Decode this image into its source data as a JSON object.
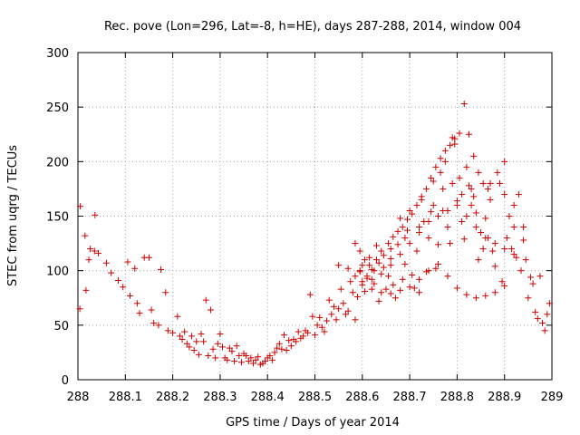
{
  "chart_data": {
    "type": "scatter",
    "title": "Rec. pove (Lon=296, Lat=-8, h=HE), days 287-288, 2014, window 004",
    "xlabel": "GPS time / Days of year 2014",
    "ylabel": "STEC from uqrg / TECUs",
    "xlim": [
      288,
      289
    ],
    "ylim": [
      0,
      300
    ],
    "xticks": [
      288,
      288.1,
      288.2,
      288.3,
      288.4,
      288.5,
      288.6,
      288.7,
      288.8,
      288.9,
      289
    ],
    "xtick_labels": [
      "288",
      "288.1",
      "288.2",
      "288.3",
      "288.4",
      "288.5",
      "288.6",
      "288.7",
      "288.8",
      "288.9",
      "289"
    ],
    "yticks": [
      0,
      50,
      100,
      150,
      200,
      250,
      300
    ],
    "ytick_labels": [
      "0",
      "50",
      "100",
      "150",
      "200",
      "250",
      "300"
    ],
    "grid": true,
    "marker": "+",
    "colors": {
      "series": "#cc0000",
      "grid": "#a0a0a0",
      "axis": "#000000"
    },
    "series": [
      {
        "name": "",
        "points": [
          [
            288.005,
            159
          ],
          [
            288.004,
            65
          ],
          [
            288.015,
            132
          ],
          [
            288.017,
            82
          ],
          [
            288.023,
            110
          ],
          [
            288.026,
            120
          ],
          [
            288.036,
            151
          ],
          [
            288.043,
            116
          ],
          [
            288.035,
            118
          ],
          [
            288.06,
            107
          ],
          [
            288.07,
            98
          ],
          [
            288.085,
            91
          ],
          [
            288.095,
            85
          ],
          [
            288.105,
            108
          ],
          [
            288.11,
            77
          ],
          [
            288.12,
            102
          ],
          [
            288.125,
            70
          ],
          [
            288.13,
            61
          ],
          [
            288.14,
            112
          ],
          [
            288.15,
            112
          ],
          [
            288.155,
            64
          ],
          [
            288.16,
            52
          ],
          [
            288.17,
            50
          ],
          [
            288.175,
            101
          ],
          [
            288.185,
            80
          ],
          [
            288.19,
            45
          ],
          [
            288.2,
            43
          ],
          [
            288.21,
            58
          ],
          [
            288.215,
            40
          ],
          [
            288.22,
            37
          ],
          [
            288.225,
            44
          ],
          [
            288.23,
            33
          ],
          [
            288.235,
            30
          ],
          [
            288.24,
            40
          ],
          [
            288.245,
            27
          ],
          [
            288.25,
            35
          ],
          [
            288.255,
            23
          ],
          [
            288.26,
            42
          ],
          [
            288.265,
            35
          ],
          [
            288.27,
            73
          ],
          [
            288.275,
            22
          ],
          [
            288.28,
            64
          ],
          [
            288.285,
            28
          ],
          [
            288.29,
            20
          ],
          [
            288.295,
            33
          ],
          [
            288.3,
            42
          ],
          [
            288.305,
            30
          ],
          [
            288.31,
            20
          ],
          [
            288.315,
            18
          ],
          [
            288.32,
            29
          ],
          [
            288.325,
            26
          ],
          [
            288.33,
            17
          ],
          [
            288.335,
            31
          ],
          [
            288.34,
            22
          ],
          [
            288.345,
            16
          ],
          [
            288.35,
            24
          ],
          [
            288.355,
            22
          ],
          [
            288.36,
            17
          ],
          [
            288.365,
            20
          ],
          [
            288.37,
            15
          ],
          [
            288.375,
            18
          ],
          [
            288.38,
            21
          ],
          [
            288.385,
            14
          ],
          [
            288.39,
            15
          ],
          [
            288.395,
            17
          ],
          [
            288.4,
            20
          ],
          [
            288.405,
            22
          ],
          [
            288.41,
            18
          ],
          [
            288.415,
            25
          ],
          [
            288.42,
            29
          ],
          [
            288.425,
            33
          ],
          [
            288.43,
            28
          ],
          [
            288.435,
            41
          ],
          [
            288.44,
            27
          ],
          [
            288.445,
            36
          ],
          [
            288.45,
            31
          ],
          [
            288.455,
            37
          ],
          [
            288.46,
            35
          ],
          [
            288.465,
            44
          ],
          [
            288.47,
            38
          ],
          [
            288.475,
            40
          ],
          [
            288.48,
            45
          ],
          [
            288.485,
            43
          ],
          [
            288.49,
            78
          ],
          [
            288.495,
            58
          ],
          [
            288.5,
            41
          ],
          [
            288.505,
            50
          ],
          [
            288.51,
            57
          ],
          [
            288.515,
            48
          ],
          [
            288.52,
            44
          ],
          [
            288.525,
            54
          ],
          [
            288.53,
            73
          ],
          [
            288.535,
            60
          ],
          [
            288.54,
            67
          ],
          [
            288.545,
            55
          ],
          [
            288.55,
            65
          ],
          [
            288.555,
            83
          ],
          [
            288.56,
            70
          ],
          [
            288.565,
            60
          ],
          [
            288.57,
            63
          ],
          [
            288.575,
            90
          ],
          [
            288.58,
            80
          ],
          [
            288.585,
            55
          ],
          [
            288.59,
            76
          ],
          [
            288.595,
            100
          ],
          [
            288.6,
            87
          ],
          [
            288.605,
            81
          ],
          [
            288.61,
            93
          ],
          [
            288.615,
            112
          ],
          [
            288.62,
            101
          ],
          [
            288.625,
            88
          ],
          [
            288.63,
            123
          ],
          [
            288.635,
            72
          ],
          [
            288.64,
            118
          ],
          [
            288.645,
            103
          ],
          [
            288.65,
            83
          ],
          [
            288.655,
            95
          ],
          [
            288.66,
            111
          ],
          [
            288.665,
            87
          ],
          [
            288.67,
            75
          ],
          [
            288.675,
            124
          ],
          [
            288.68,
            148
          ],
          [
            288.685,
            92
          ],
          [
            288.69,
            106
          ],
          [
            288.695,
            137
          ],
          [
            288.7,
            155
          ],
          [
            288.705,
            96
          ],
          [
            288.71,
            84
          ],
          [
            288.715,
            118
          ],
          [
            288.72,
            80
          ],
          [
            288.725,
            165
          ],
          [
            288.73,
            145
          ],
          [
            288.735,
            99
          ],
          [
            288.74,
            130
          ],
          [
            288.745,
            154
          ],
          [
            288.75,
            182
          ],
          [
            288.755,
            102
          ],
          [
            288.76,
            124
          ],
          [
            288.765,
            190
          ],
          [
            288.77,
            155
          ],
          [
            288.775,
            200
          ],
          [
            288.78,
            140
          ],
          [
            288.785,
            125
          ],
          [
            288.79,
            222
          ],
          [
            288.795,
            216
          ],
          [
            288.8,
            164
          ],
          [
            288.805,
            185
          ],
          [
            288.81,
            145
          ],
          [
            288.815,
            129
          ],
          [
            288.82,
            195
          ],
          [
            288.825,
            178
          ],
          [
            288.83,
            160
          ],
          [
            288.835,
            168
          ],
          [
            288.84,
            153
          ],
          [
            288.845,
            110
          ],
          [
            288.85,
            135
          ],
          [
            288.855,
            120
          ],
          [
            288.86,
            148
          ],
          [
            288.865,
            130
          ],
          [
            288.87,
            165
          ],
          [
            288.875,
            118
          ],
          [
            288.88,
            104
          ],
          [
            288.885,
            190
          ],
          [
            288.89,
            180
          ],
          [
            288.895,
            90
          ],
          [
            288.9,
            200
          ],
          [
            288.905,
            130
          ],
          [
            288.91,
            150
          ],
          [
            288.915,
            120
          ],
          [
            288.92,
            140
          ],
          [
            288.925,
            112
          ],
          [
            288.93,
            170
          ],
          [
            288.935,
            100
          ],
          [
            288.94,
            128
          ],
          [
            288.945,
            110
          ],
          [
            288.95,
            75
          ],
          [
            288.955,
            94
          ],
          [
            288.96,
            88
          ],
          [
            288.965,
            62
          ],
          [
            288.97,
            56
          ],
          [
            288.975,
            95
          ],
          [
            288.98,
            52
          ],
          [
            288.985,
            45
          ],
          [
            288.99,
            60
          ],
          [
            288.995,
            70
          ],
          [
            288.585,
            125
          ],
          [
            288.595,
            118
          ],
          [
            288.605,
            110
          ],
          [
            288.615,
            105
          ],
          [
            288.625,
            100
          ],
          [
            288.635,
            107
          ],
          [
            288.645,
            114
          ],
          [
            288.655,
            125
          ],
          [
            288.665,
            131
          ],
          [
            288.675,
            136
          ],
          [
            288.685,
            140
          ],
          [
            288.695,
            147
          ],
          [
            288.705,
            152
          ],
          [
            288.715,
            160
          ],
          [
            288.725,
            168
          ],
          [
            288.735,
            175
          ],
          [
            288.745,
            185
          ],
          [
            288.755,
            195
          ],
          [
            288.765,
            203
          ],
          [
            288.775,
            210
          ],
          [
            288.785,
            215
          ],
          [
            288.795,
            221
          ],
          [
            288.805,
            226
          ],
          [
            288.815,
            253
          ],
          [
            288.825,
            225
          ],
          [
            288.835,
            205
          ],
          [
            288.845,
            190
          ],
          [
            288.855,
            180
          ],
          [
            288.865,
            175
          ],
          [
            288.595,
            99
          ],
          [
            288.61,
            95
          ],
          [
            288.62,
            92
          ],
          [
            288.64,
            97
          ],
          [
            288.66,
            105
          ],
          [
            288.68,
            115
          ],
          [
            288.7,
            125
          ],
          [
            288.72,
            135
          ],
          [
            288.74,
            145
          ],
          [
            288.76,
            150
          ],
          [
            288.78,
            155
          ],
          [
            288.8,
            160
          ],
          [
            288.82,
            150
          ],
          [
            288.84,
            140
          ],
          [
            288.86,
            130
          ],
          [
            288.88,
            125
          ],
          [
            288.9,
            120
          ],
          [
            288.92,
            115
          ],
          [
            288.585,
            95
          ],
          [
            288.6,
            90
          ],
          [
            288.62,
            83
          ],
          [
            288.64,
            80
          ],
          [
            288.66,
            79
          ],
          [
            288.68,
            82
          ],
          [
            288.7,
            85
          ],
          [
            288.72,
            92
          ],
          [
            288.74,
            100
          ],
          [
            288.76,
            106
          ],
          [
            288.78,
            95
          ],
          [
            288.8,
            84
          ],
          [
            288.82,
            78
          ],
          [
            288.84,
            75
          ],
          [
            288.86,
            77
          ],
          [
            288.88,
            80
          ],
          [
            288.9,
            86
          ],
          [
            288.55,
            105
          ],
          [
            288.57,
            102
          ],
          [
            288.6,
            105
          ],
          [
            288.63,
            110
          ],
          [
            288.66,
            120
          ],
          [
            288.69,
            130
          ],
          [
            288.72,
            140
          ],
          [
            288.75,
            160
          ],
          [
            288.77,
            175
          ],
          [
            288.79,
            180
          ],
          [
            288.81,
            170
          ],
          [
            288.83,
            175
          ],
          [
            288.87,
            180
          ],
          [
            288.9,
            170
          ],
          [
            288.92,
            160
          ],
          [
            288.94,
            140
          ]
        ]
      }
    ]
  }
}
